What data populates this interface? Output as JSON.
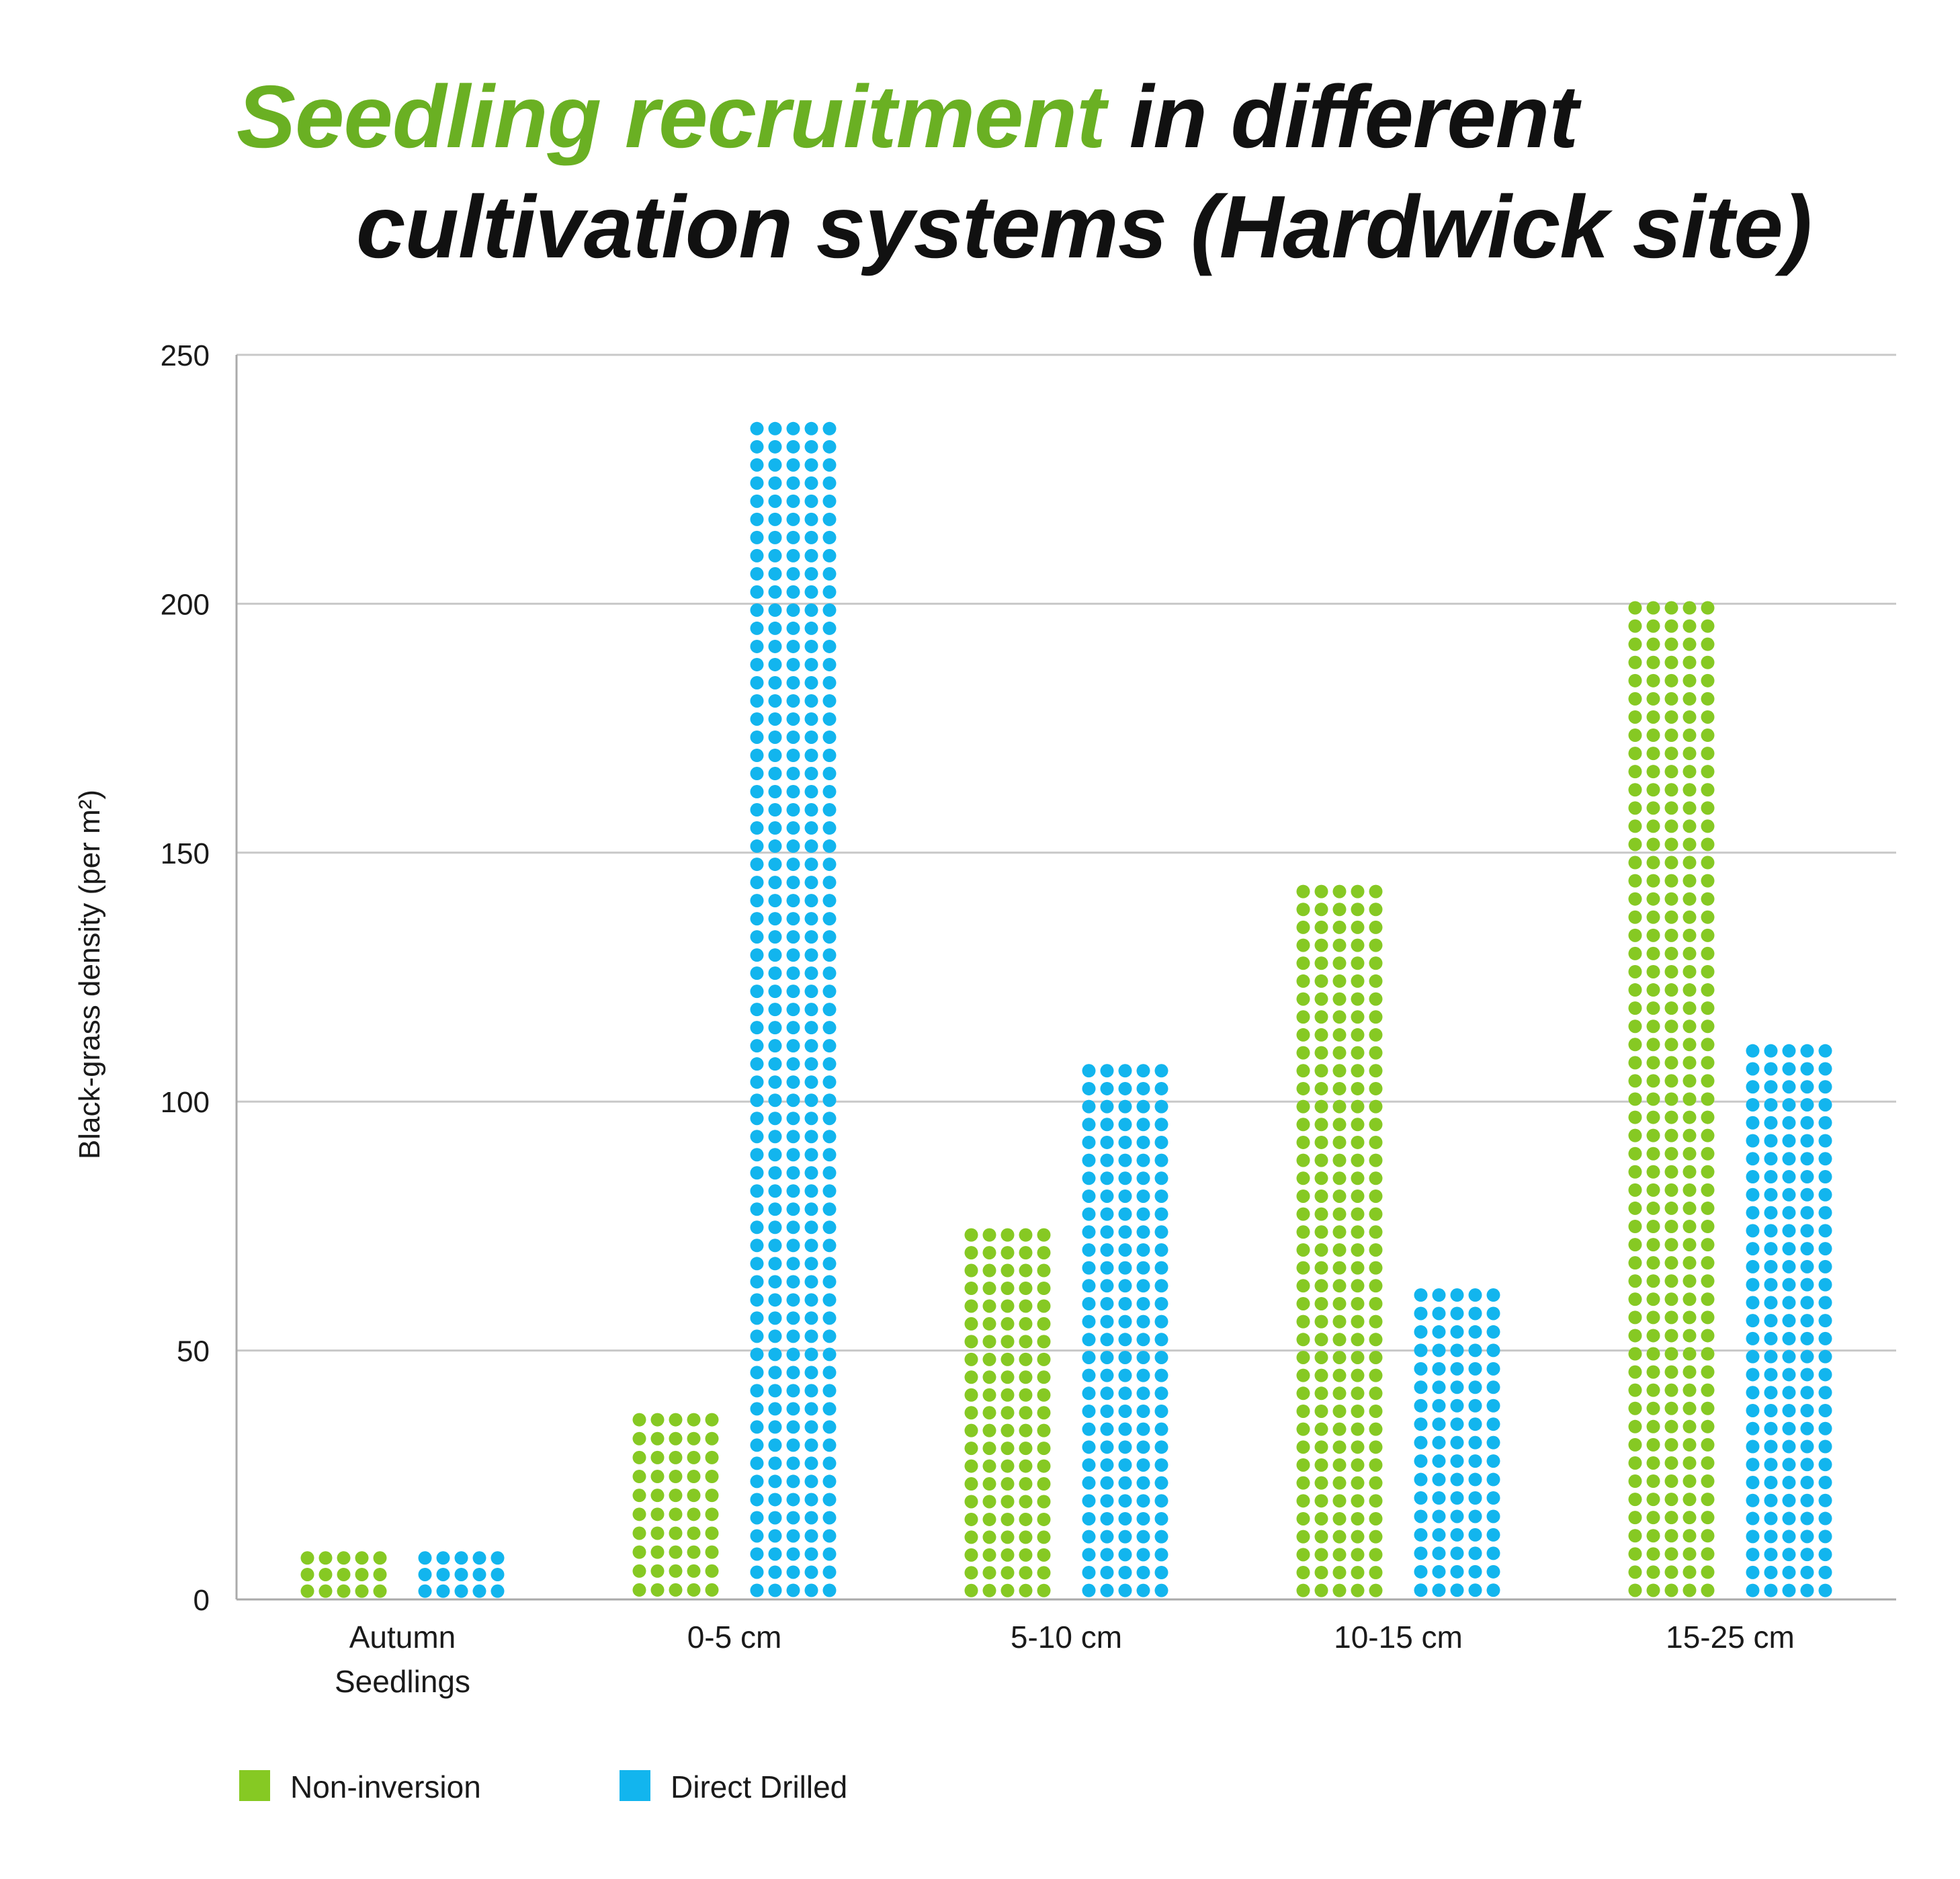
{
  "title": {
    "highlight": "Seedling recruitment",
    "rest_line1": " in different",
    "line2": "cultivation systems (Hardwick site)"
  },
  "colors": {
    "title_highlight": "#6ab023",
    "non_inversion": "#86c923",
    "direct_drilled": "#12b5ee",
    "grid": "#c8c8c8",
    "axis": "#aaaaaa",
    "text": "#1a1a1a"
  },
  "chart_data": {
    "type": "bar",
    "style": "dot-stacked",
    "ylabel": "Black-grass density (per m²)",
    "xlabel": "",
    "ylim": [
      0,
      250
    ],
    "yticks": [
      0,
      50,
      100,
      150,
      200,
      250
    ],
    "grid": true,
    "legend_position": "bottom-left",
    "categories": [
      [
        "Autumn",
        "Seedlings"
      ],
      [
        "0-5 cm"
      ],
      [
        "5-10 cm"
      ],
      [
        "10-15 cm"
      ],
      [
        "15-25 cm"
      ]
    ],
    "series": [
      {
        "name": "Non-inversion",
        "values": [
          10,
          38,
          75,
          144,
          201
        ]
      },
      {
        "name": "Direct Drilled",
        "values": [
          10,
          237,
          108,
          63,
          112
        ]
      }
    ]
  }
}
